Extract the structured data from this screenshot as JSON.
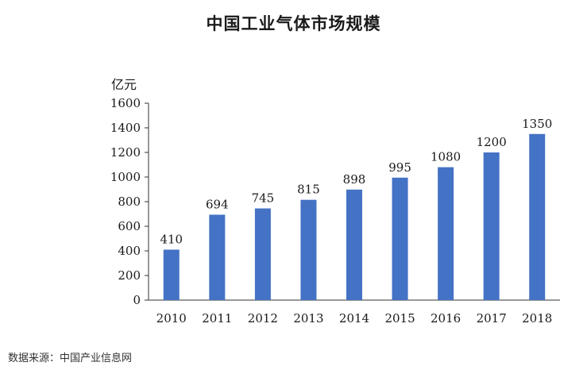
{
  "title": "中国工业气体市场规模",
  "source": "数据来源：中国产业信息网",
  "colors": {
    "bar": "#4472C4",
    "axis": "#333333",
    "text": "#1a1a1a"
  },
  "chart_data": {
    "type": "bar",
    "title": "中国工业气体市场规模",
    "ylabel": "亿元",
    "xlabel": "",
    "categories": [
      "2010",
      "2011",
      "2012",
      "2013",
      "2014",
      "2015",
      "2016",
      "2017",
      "2018"
    ],
    "values": [
      410,
      694,
      745,
      815,
      898,
      995,
      1080,
      1200,
      1350
    ],
    "ylim": [
      0,
      1600
    ],
    "yticks": [
      0,
      200,
      400,
      600,
      800,
      1000,
      1200,
      1400,
      1600
    ],
    "grid": false,
    "legend": "none"
  }
}
